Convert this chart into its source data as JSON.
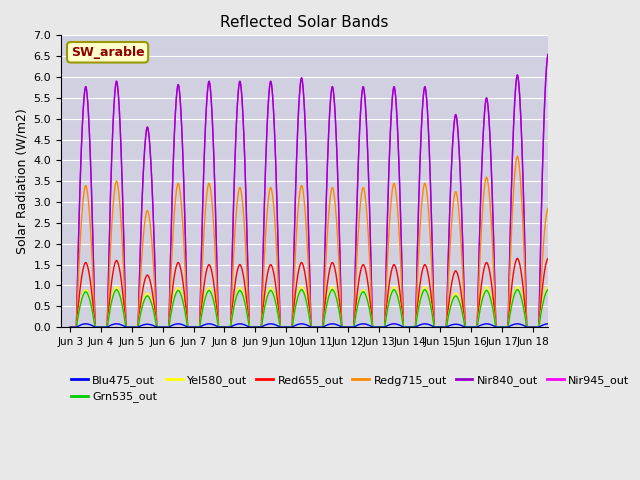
{
  "title": "Reflected Solar Bands",
  "ylabel": "Solar Radiation (W/m2)",
  "annotation": "SW_arable",
  "ylim": [
    0.0,
    7.0
  ],
  "yticks": [
    0.0,
    0.5,
    1.0,
    1.5,
    2.0,
    2.5,
    3.0,
    3.5,
    4.0,
    4.5,
    5.0,
    5.5,
    6.0,
    6.5,
    7.0
  ],
  "xtick_labels": [
    "Jun 3",
    "Jun 4",
    "Jun 5",
    "Jun 6",
    "Jun 7",
    "Jun 8",
    "Jun 9",
    "Jun 10",
    "Jun 11",
    "Jun 12",
    "Jun 13",
    "Jun 14",
    "Jun 15",
    "Jun 16",
    "Jun 17",
    "Jun 18"
  ],
  "series": [
    {
      "name": "Blu475_out",
      "color": "#0000ff"
    },
    {
      "name": "Grn535_out",
      "color": "#00cc00"
    },
    {
      "name": "Yel580_out",
      "color": "#ffff00"
    },
    {
      "name": "Red655_out",
      "color": "#ff0000"
    },
    {
      "name": "Redg715_out",
      "color": "#ff8800"
    },
    {
      "name": "Nir840_out",
      "color": "#9900cc"
    },
    {
      "name": "Nir945_out",
      "color": "#ff00ff"
    }
  ],
  "background_color": "#e8e8e8",
  "plot_bg_color": "#d0d0e0",
  "n_days": 16,
  "peaks_nir945": [
    5.77,
    5.9,
    4.8,
    5.82,
    5.9,
    5.9,
    5.9,
    5.98,
    5.77,
    5.77,
    5.77,
    5.77,
    5.1,
    5.5,
    6.05,
    6.55
  ],
  "peaks_nir840": [
    5.77,
    5.9,
    4.8,
    5.82,
    5.9,
    5.9,
    5.9,
    5.98,
    5.77,
    5.77,
    5.77,
    5.77,
    5.1,
    5.5,
    6.05,
    6.55
  ],
  "peaks_redg715": [
    3.4,
    3.5,
    2.8,
    3.45,
    3.45,
    3.35,
    3.35,
    3.4,
    3.35,
    3.35,
    3.45,
    3.45,
    3.25,
    3.6,
    4.1,
    2.85
  ],
  "peaks_red655": [
    1.55,
    1.6,
    1.25,
    1.55,
    1.5,
    1.5,
    1.5,
    1.55,
    1.55,
    1.5,
    1.5,
    1.5,
    1.35,
    1.55,
    1.65,
    1.65
  ],
  "peaks_yel580": [
    0.9,
    0.97,
    0.82,
    0.95,
    0.95,
    0.95,
    0.95,
    0.97,
    0.97,
    0.9,
    0.97,
    0.97,
    0.82,
    0.97,
    0.97,
    0.97
  ],
  "peaks_grn535": [
    0.85,
    0.9,
    0.75,
    0.88,
    0.88,
    0.88,
    0.88,
    0.9,
    0.9,
    0.85,
    0.9,
    0.9,
    0.75,
    0.88,
    0.9,
    0.9
  ],
  "peaks_blu475": [
    0.08,
    0.08,
    0.07,
    0.08,
    0.08,
    0.08,
    0.08,
    0.08,
    0.08,
    0.08,
    0.08,
    0.08,
    0.07,
    0.08,
    0.08,
    0.08
  ]
}
